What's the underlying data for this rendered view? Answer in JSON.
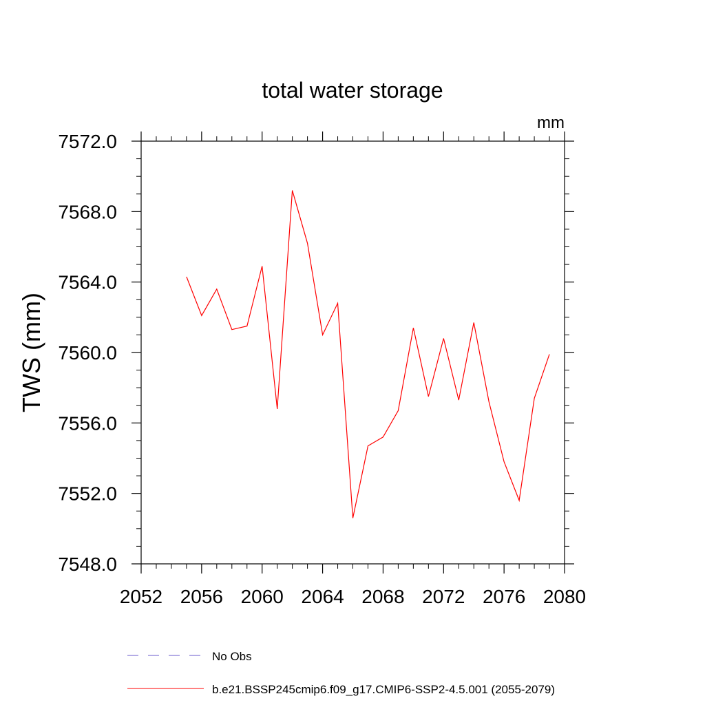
{
  "chart_data": {
    "type": "line",
    "title": "total water storage",
    "units_label": "mm",
    "xlabel": "",
    "ylabel": "TWS  (mm)",
    "xlim": [
      2052,
      2080
    ],
    "ylim": [
      7548.0,
      7572.0
    ],
    "x_ticks": [
      2052,
      2056,
      2060,
      2064,
      2068,
      2072,
      2076,
      2080
    ],
    "x_tick_labels": [
      "2052",
      "2056",
      "2060",
      "2064",
      "2068",
      "2072",
      "2076",
      "2080"
    ],
    "y_ticks": [
      7548.0,
      7552.0,
      7556.0,
      7560.0,
      7564.0,
      7568.0,
      7572.0
    ],
    "y_tick_labels": [
      "7548.0",
      "7552.0",
      "7556.0",
      "7560.0",
      "7564.0",
      "7568.0",
      "7572.0"
    ],
    "series": [
      {
        "name": "b.e21.BSSP245cmip6.f09_g17.CMIP6-SSP2-4.5.001 (2055-2079)",
        "color": "#ff0000",
        "style": "solid",
        "x": [
          2055,
          2056,
          2057,
          2058,
          2059,
          2060,
          2061,
          2062,
          2063,
          2064,
          2065,
          2066,
          2067,
          2068,
          2069,
          2070,
          2071,
          2072,
          2073,
          2074,
          2075,
          2076,
          2077,
          2078,
          2079
        ],
        "values": [
          7564.3,
          7562.1,
          7563.6,
          7561.3,
          7561.5,
          7564.9,
          7556.8,
          7569.2,
          7566.2,
          7561.0,
          7562.8,
          7550.6,
          7554.7,
          7555.2,
          7556.7,
          7561.4,
          7557.5,
          7560.8,
          7557.3,
          7561.7,
          7557.2,
          7553.8,
          7551.6,
          7557.4,
          7559.9
        ]
      }
    ],
    "legend": [
      {
        "label": "No Obs",
        "color": "#6a5acd",
        "style": "dashed"
      },
      {
        "label": "b.e21.BSSP245cmip6.f09_g17.CMIP6-SSP2-4.5.001 (2055-2079)",
        "color": "#ff0000",
        "style": "solid"
      }
    ],
    "legend_position": "bottom"
  }
}
